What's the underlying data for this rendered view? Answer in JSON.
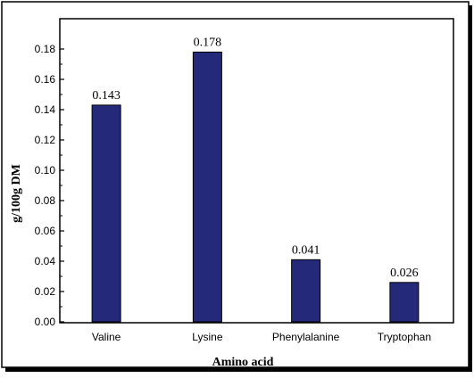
{
  "chart_data": {
    "type": "bar",
    "categories": [
      "Valine",
      "Lysine",
      "Phenylalanine",
      "Tryptophan"
    ],
    "values": [
      0.143,
      0.178,
      0.041,
      0.026
    ],
    "data_labels": [
      "0.143",
      "0.178",
      "0.041",
      "0.026"
    ],
    "title": "",
    "xlabel": "Amino acid",
    "ylabel": "g/100g DM",
    "ylim": [
      0,
      0.19
    ],
    "yticks": [
      0.0,
      0.02,
      0.04,
      0.06,
      0.08,
      0.1,
      0.12,
      0.14,
      0.16,
      0.18
    ],
    "ytick_labels": [
      "0.00",
      "0.02",
      "0.04",
      "0.06",
      "0.08",
      "0.10",
      "0.12",
      "0.14",
      "0.16",
      "0.18"
    ],
    "grid": false,
    "legend": "none",
    "bar_color": "#24297a",
    "bar_edge_color": "#000000",
    "frame_shadow": true
  }
}
